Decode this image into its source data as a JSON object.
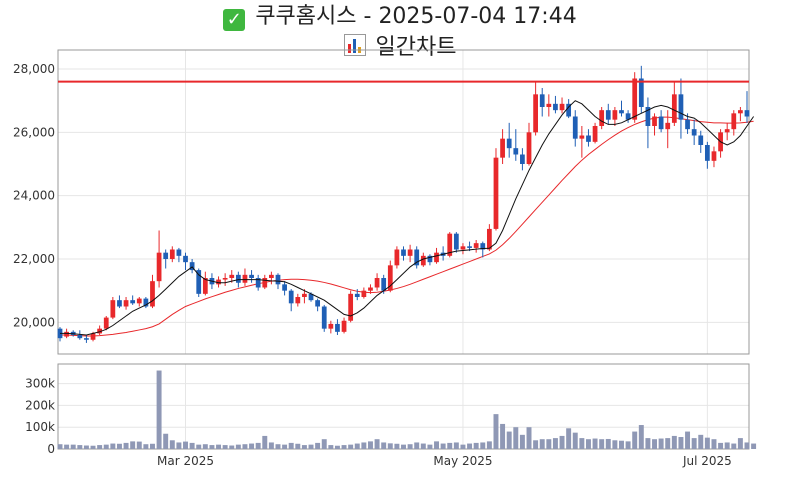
{
  "header": {
    "check_icon": "check-icon",
    "title": "쿠쿠홈시스 - 2025-07-04 17:44",
    "chart_icon": "bar-chart-icon",
    "subtitle": "일간차트"
  },
  "colors": {
    "up": "#e8282b",
    "down": "#1f5fb5",
    "ma_short": "#111111",
    "ma_long": "#e8282b",
    "resistance": "#e8282b",
    "volume": "#8f98b5",
    "grid": "#e6e6e6"
  },
  "chart_data": [
    {
      "type": "candlestick",
      "title": "",
      "ylim": [
        19000,
        28600
      ],
      "y_ticks": [
        "20,000",
        "22,000",
        "24,000",
        "26,000",
        "28,000"
      ],
      "y_tick_values": [
        20000,
        22000,
        24000,
        26000,
        28000
      ],
      "grid": true,
      "resistance_level": 27600,
      "x_ticks": [
        {
          "label": "Mar 2025",
          "index": 19
        },
        {
          "label": "May 2025",
          "index": 61
        },
        {
          "label": "Jul 2025",
          "index": 98
        }
      ],
      "candles": [
        [
          19800,
          19850,
          19400,
          19500
        ],
        [
          19550,
          19800,
          19500,
          19700
        ],
        [
          19700,
          19750,
          19550,
          19600
        ],
        [
          19600,
          19750,
          19450,
          19500
        ],
        [
          19500,
          19600,
          19350,
          19450
        ],
        [
          19450,
          19700,
          19400,
          19650
        ],
        [
          19650,
          19900,
          19600,
          19800
        ],
        [
          19800,
          20200,
          19750,
          20150
        ],
        [
          20150,
          20800,
          20100,
          20700
        ],
        [
          20700,
          20850,
          20450,
          20500
        ],
        [
          20500,
          20800,
          20400,
          20700
        ],
        [
          20700,
          20850,
          20550,
          20600
        ],
        [
          20600,
          20800,
          20500,
          20750
        ],
        [
          20750,
          20800,
          20450,
          20500
        ],
        [
          20500,
          21500,
          20450,
          21300
        ],
        [
          21300,
          22900,
          21100,
          22200
        ],
        [
          22200,
          22300,
          21700,
          22000
        ],
        [
          22000,
          22400,
          21900,
          22300
        ],
        [
          22300,
          22350,
          21900,
          22100
        ],
        [
          22100,
          22200,
          21650,
          21900
        ],
        [
          21900,
          22000,
          21550,
          21650
        ],
        [
          21650,
          21700,
          20800,
          20900
        ],
        [
          20900,
          21600,
          20850,
          21400
        ],
        [
          21400,
          21550,
          21050,
          21200
        ],
        [
          21200,
          21450,
          21100,
          21350
        ],
        [
          21350,
          21550,
          21150,
          21400
        ],
        [
          21400,
          21650,
          21250,
          21500
        ],
        [
          21500,
          21600,
          21100,
          21250
        ],
        [
          21250,
          21700,
          21150,
          21500
        ],
        [
          21500,
          21650,
          21250,
          21400
        ],
        [
          21400,
          21500,
          21000,
          21100
        ],
        [
          21100,
          21500,
          21050,
          21400
        ],
        [
          21400,
          21600,
          21200,
          21500
        ],
        [
          21500,
          21550,
          21050,
          21200
        ],
        [
          21200,
          21300,
          20850,
          21000
        ],
        [
          21000,
          21050,
          20350,
          20600
        ],
        [
          20600,
          20900,
          20500,
          20800
        ],
        [
          20800,
          21050,
          20600,
          20900
        ],
        [
          20900,
          20950,
          20650,
          20700
        ],
        [
          20700,
          20750,
          20350,
          20500
        ],
        [
          20500,
          20550,
          19700,
          19800
        ],
        [
          19800,
          20050,
          19650,
          19950
        ],
        [
          19950,
          20100,
          19600,
          19700
        ],
        [
          19700,
          20150,
          19650,
          20050
        ],
        [
          20050,
          21000,
          20000,
          20900
        ],
        [
          20900,
          21050,
          20700,
          20800
        ],
        [
          20800,
          21100,
          20750,
          21000
        ],
        [
          21000,
          21200,
          20900,
          21100
        ],
        [
          21100,
          21550,
          21000,
          21400
        ],
        [
          21400,
          21500,
          20900,
          21000
        ],
        [
          21000,
          21950,
          20950,
          21800
        ],
        [
          21800,
          22400,
          21700,
          22300
        ],
        [
          22300,
          22400,
          21950,
          22100
        ],
        [
          22100,
          22450,
          21900,
          22300
        ],
        [
          22300,
          22400,
          21700,
          21800
        ],
        [
          21800,
          22200,
          21750,
          22100
        ],
        [
          22100,
          22150,
          21800,
          21900
        ],
        [
          21900,
          22350,
          21850,
          22200
        ],
        [
          22200,
          22400,
          21950,
          22100
        ],
        [
          22100,
          22850,
          22050,
          22800
        ],
        [
          22800,
          22850,
          22200,
          22300
        ],
        [
          22300,
          22500,
          22150,
          22400
        ],
        [
          22400,
          22550,
          22250,
          22350
        ],
        [
          22350,
          22600,
          22200,
          22500
        ],
        [
          22500,
          22550,
          22050,
          22300
        ],
        [
          22300,
          23100,
          22250,
          22950
        ],
        [
          22950,
          25500,
          22900,
          25200
        ],
        [
          25200,
          26100,
          25000,
          25800
        ],
        [
          25800,
          26300,
          25200,
          25500
        ],
        [
          25500,
          26100,
          25100,
          25300
        ],
        [
          25300,
          25500,
          24800,
          25000
        ],
        [
          25000,
          26300,
          24950,
          26000
        ],
        [
          26000,
          27600,
          25900,
          27200
        ],
        [
          27200,
          27400,
          26500,
          26800
        ],
        [
          26800,
          27200,
          26500,
          26900
        ],
        [
          26900,
          27150,
          26600,
          26700
        ],
        [
          26700,
          27100,
          26600,
          26900
        ],
        [
          26900,
          27050,
          26450,
          26500
        ],
        [
          26500,
          26700,
          25550,
          25800
        ],
        [
          25800,
          26200,
          25200,
          25900
        ],
        [
          25900,
          26100,
          25550,
          25700
        ],
        [
          25700,
          26300,
          25650,
          26200
        ],
        [
          26200,
          26800,
          26100,
          26700
        ],
        [
          26700,
          26900,
          26250,
          26400
        ],
        [
          26400,
          26800,
          26200,
          26700
        ],
        [
          26700,
          27000,
          26500,
          26600
        ],
        [
          26600,
          26700,
          26300,
          26400
        ],
        [
          26400,
          27900,
          26300,
          27700
        ],
        [
          27700,
          28100,
          26600,
          26800
        ],
        [
          26800,
          27100,
          25500,
          26200
        ],
        [
          26200,
          26600,
          25900,
          26500
        ],
        [
          26500,
          26700,
          26000,
          26100
        ],
        [
          26100,
          26700,
          25500,
          26300
        ],
        [
          26300,
          27600,
          26200,
          27200
        ],
        [
          27200,
          27700,
          25800,
          26400
        ],
        [
          26400,
          26600,
          25950,
          26100
        ],
        [
          26100,
          26400,
          25600,
          25900
        ],
        [
          25900,
          26050,
          25350,
          25600
        ],
        [
          25600,
          25700,
          24850,
          25100
        ],
        [
          25100,
          25550,
          24900,
          25400
        ],
        [
          25400,
          26100,
          25200,
          26000
        ],
        [
          26000,
          26300,
          25750,
          26100
        ],
        [
          26100,
          26700,
          25900,
          26600
        ],
        [
          26600,
          26800,
          26350,
          26700
        ],
        [
          26700,
          27300,
          26300,
          26500
        ]
      ],
      "ma_short": [
        19650,
        19650,
        19640,
        19620,
        19600,
        19650,
        19700,
        19780,
        19900,
        20050,
        20200,
        20350,
        20450,
        20550,
        20680,
        20850,
        21050,
        21250,
        21450,
        21600,
        21750,
        21500,
        21350,
        21300,
        21250,
        21250,
        21300,
        21350,
        21350,
        21350,
        21350,
        21330,
        21310,
        21300,
        21280,
        21200,
        21100,
        21000,
        20900,
        20800,
        20700,
        20550,
        20400,
        20250,
        20200,
        20300,
        20450,
        20650,
        20850,
        21000,
        21150,
        21350,
        21550,
        21750,
        21900,
        22000,
        22050,
        22100,
        22150,
        22200,
        22250,
        22270,
        22290,
        22310,
        22330,
        22340,
        22500,
        22900,
        23400,
        23900,
        24350,
        24800,
        25200,
        25600,
        25950,
        26250,
        26550,
        26800,
        27000,
        26900,
        26700,
        26500,
        26350,
        26250,
        26250,
        26300,
        26400,
        26500,
        26600,
        26700,
        26800,
        26850,
        26800,
        26700,
        26600,
        26500,
        26450,
        26300,
        26100,
        25900,
        25700,
        25600,
        25700,
        25900,
        26200,
        26500
      ],
      "ma_long": [
        19600,
        19600,
        19590,
        19580,
        19570,
        19570,
        19580,
        19600,
        19620,
        19650,
        19680,
        19720,
        19760,
        19800,
        19860,
        19950,
        20100,
        20250,
        20380,
        20500,
        20580,
        20660,
        20740,
        20810,
        20880,
        20950,
        21010,
        21070,
        21120,
        21170,
        21220,
        21260,
        21300,
        21330,
        21350,
        21360,
        21360,
        21350,
        21330,
        21300,
        21260,
        21210,
        21150,
        21090,
        21030,
        20980,
        20950,
        20940,
        20950,
        20980,
        21020,
        21070,
        21130,
        21200,
        21280,
        21360,
        21440,
        21520,
        21600,
        21680,
        21760,
        21840,
        21920,
        22000,
        22080,
        22160,
        22280,
        22450,
        22650,
        22870,
        23100,
        23330,
        23560,
        23790,
        24020,
        24250,
        24480,
        24700,
        24920,
        25120,
        25300,
        25460,
        25620,
        25770,
        25910,
        26040,
        26150,
        26250,
        26330,
        26400,
        26450,
        26480,
        26480,
        26460,
        26430,
        26400,
        26370,
        26340,
        26320,
        26300,
        26300,
        26290,
        26290,
        26300,
        26320,
        26350
      ]
    },
    {
      "type": "bar",
      "title": "",
      "ylim": [
        0,
        390000
      ],
      "y_ticks": [
        "0",
        "100k",
        "200k",
        "300k"
      ],
      "y_tick_values": [
        0,
        100000,
        200000,
        300000
      ],
      "grid": true,
      "values": [
        22000,
        20000,
        20000,
        18000,
        16000,
        15000,
        18000,
        20000,
        25000,
        24000,
        28000,
        35000,
        34000,
        22000,
        24000,
        360000,
        70000,
        40000,
        30000,
        34000,
        28000,
        20000,
        22000,
        18000,
        20000,
        18000,
        16000,
        20000,
        22000,
        25000,
        28000,
        60000,
        30000,
        22000,
        20000,
        28000,
        24000,
        18000,
        20000,
        28000,
        45000,
        18000,
        15000,
        18000,
        20000,
        25000,
        30000,
        35000,
        45000,
        30000,
        26000,
        24000,
        20000,
        22000,
        30000,
        25000,
        20000,
        35000,
        25000,
        28000,
        30000,
        20000,
        25000,
        28000,
        30000,
        35000,
        160000,
        115000,
        80000,
        100000,
        65000,
        100000,
        40000,
        45000,
        45000,
        50000,
        60000,
        95000,
        75000,
        50000,
        45000,
        48000,
        45000,
        46000,
        40000,
        38000,
        35000,
        80000,
        110000,
        50000,
        45000,
        48000,
        50000,
        60000,
        55000,
        80000,
        50000,
        65000,
        52000,
        45000,
        28000,
        30000,
        25000,
        50000,
        30000,
        25000
      ]
    }
  ]
}
